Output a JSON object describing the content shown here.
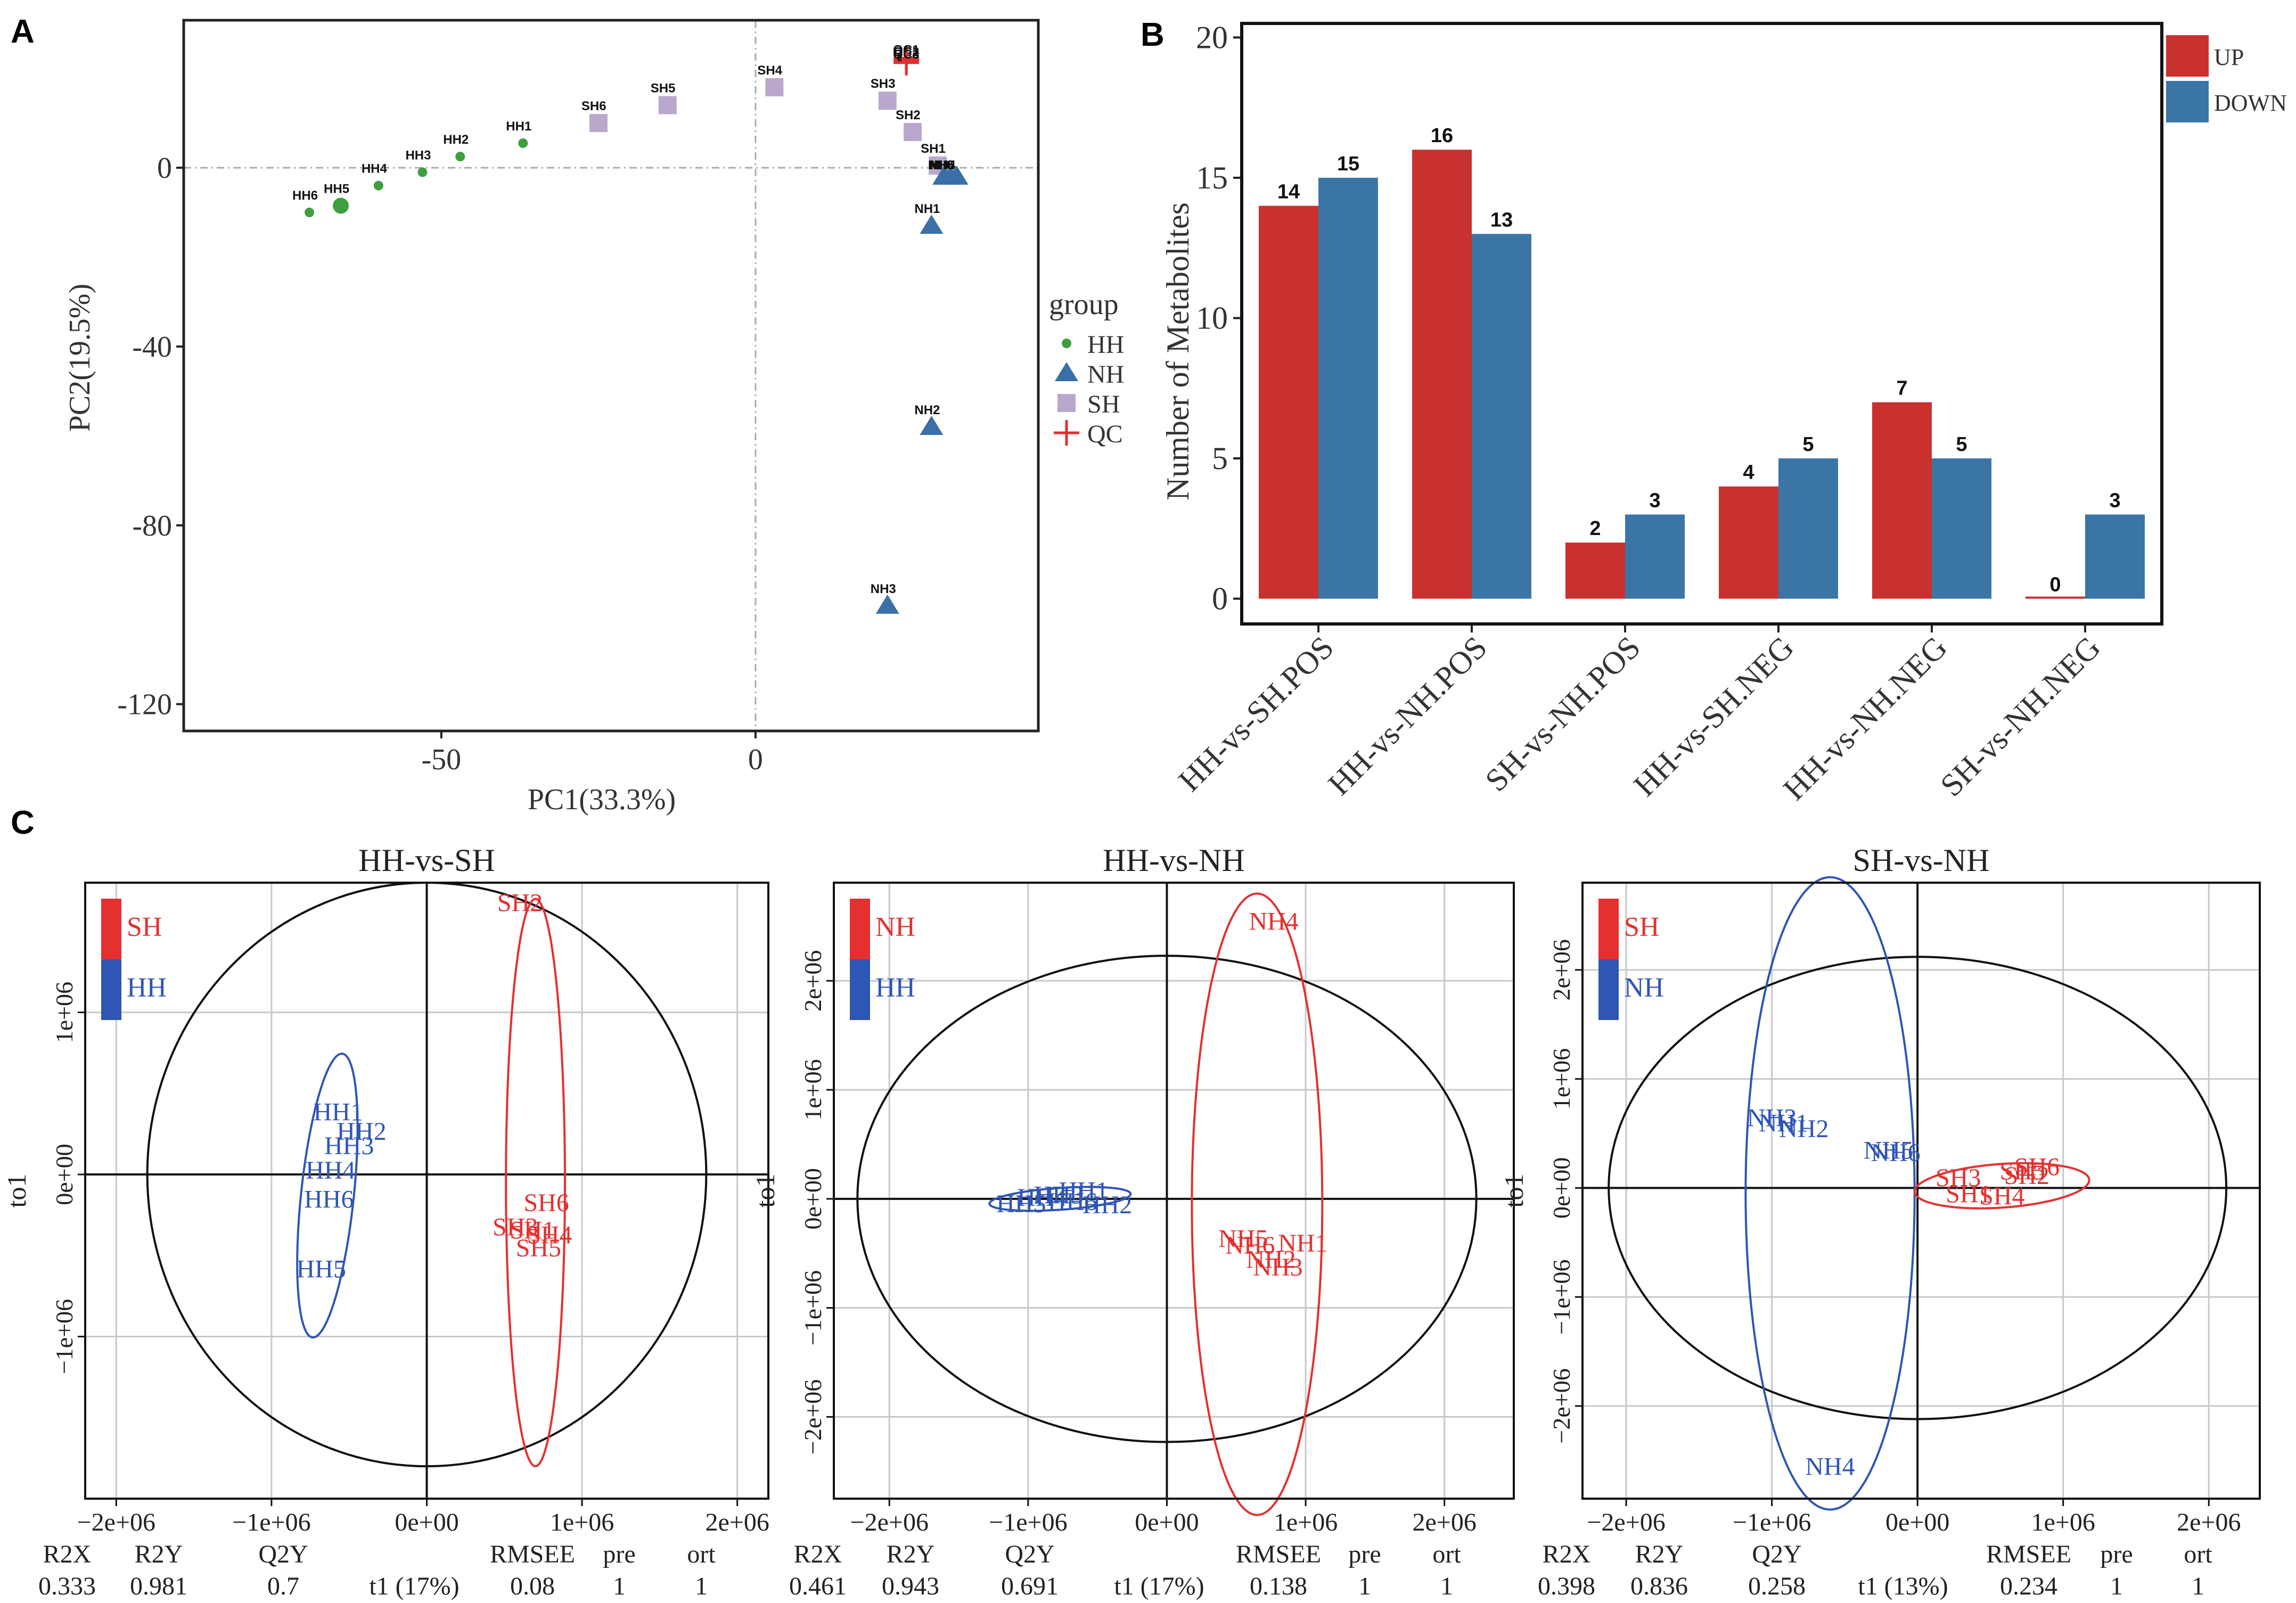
{
  "panel_letters": {
    "a": "A",
    "b": "B",
    "c": "C"
  },
  "chart_data": [
    {
      "type": "scatter",
      "panel": "A",
      "title": "",
      "xlabel": "PC1(33.3%)",
      "ylabel": "PC2(19.5%)",
      "xlim": [
        -91,
        45
      ],
      "ylim": [
        -126,
        33
      ],
      "xticks": [
        -50,
        0
      ],
      "yticks": [
        0,
        -40,
        -80,
        -120
      ],
      "legend": {
        "title": "group",
        "position": "right",
        "items": [
          {
            "label": "HH",
            "shape": "circle",
            "color": "#3f9e3f"
          },
          {
            "label": "NH",
            "shape": "triangle",
            "color": "#3a6fa8"
          },
          {
            "label": "SH",
            "shape": "square",
            "color": "#b9a8cc"
          },
          {
            "label": "QC",
            "shape": "cross",
            "color": "#e03030"
          }
        ]
      },
      "points": [
        {
          "label": "HH6",
          "group": "HH",
          "x": -71,
          "y": -10,
          "big": false
        },
        {
          "label": "HH5",
          "group": "HH",
          "x": -66,
          "y": -8.5,
          "big": true
        },
        {
          "label": "HH4",
          "group": "HH",
          "x": -60,
          "y": -4,
          "big": false
        },
        {
          "label": "HH3",
          "group": "HH",
          "x": -53,
          "y": -1,
          "big": false
        },
        {
          "label": "HH2",
          "group": "HH",
          "x": -47,
          "y": 2.5,
          "big": false
        },
        {
          "label": "HH1",
          "group": "HH",
          "x": -37,
          "y": 5.5,
          "big": false
        },
        {
          "label": "SH6",
          "group": "SH",
          "x": -25,
          "y": 10,
          "big": false
        },
        {
          "label": "SH5",
          "group": "SH",
          "x": -14,
          "y": 14,
          "big": false
        },
        {
          "label": "SH4",
          "group": "SH",
          "x": 3,
          "y": 18,
          "big": false
        },
        {
          "label": "SH3",
          "group": "SH",
          "x": 21,
          "y": 15,
          "big": false
        },
        {
          "label": "SH2",
          "group": "SH",
          "x": 25,
          "y": 8,
          "big": false
        },
        {
          "label": "SH1",
          "group": "SH",
          "x": 29,
          "y": 0.5,
          "big": false
        },
        {
          "label": "NH1",
          "group": "NH",
          "x": 28,
          "y": -13,
          "big": false
        },
        {
          "label": "NH2",
          "group": "NH",
          "x": 28,
          "y": -58,
          "big": false
        },
        {
          "label": "NH3",
          "group": "NH",
          "x": 21,
          "y": -98,
          "big": false
        },
        {
          "label": "NH4",
          "group": "NH",
          "x": 32,
          "y": -2,
          "big": false
        },
        {
          "label": "NH5",
          "group": "NH",
          "x": 31,
          "y": -2,
          "big": false
        },
        {
          "label": "NH6",
          "group": "NH",
          "x": 30,
          "y": -2,
          "big": false
        },
        {
          "label": "QC1",
          "group": "QC",
          "x": 24,
          "y": 24.5,
          "big": false
        },
        {
          "label": "QC2",
          "group": "QC",
          "x": 24,
          "y": 24,
          "big": false
        },
        {
          "label": "QC3",
          "group": "QC",
          "x": 24,
          "y": 23.5,
          "big": false
        }
      ]
    },
    {
      "type": "bar",
      "panel": "B",
      "title": "",
      "xlabel": "",
      "ylabel": "Number of Metabolites",
      "ylim": [
        -0.9,
        20.5
      ],
      "yticks": [
        0,
        5,
        10,
        15,
        20
      ],
      "categories": [
        "HH-vs-SH.POS",
        "HH-vs-NH.POS",
        "SH-vs-NH.POS",
        "HH-vs-SH.NEG",
        "HH-vs-NH.NEG",
        "SH-vs-NH.NEG"
      ],
      "series": [
        {
          "name": "UP",
          "color": "#c8312f",
          "values": [
            14,
            16,
            2,
            4,
            7,
            0
          ]
        },
        {
          "name": "DOWN",
          "color": "#3a75a6",
          "values": [
            15,
            13,
            3,
            5,
            5,
            3
          ]
        }
      ],
      "legend": {
        "position": "top-right"
      }
    },
    {
      "type": "scatter",
      "panel": "C1",
      "title": "HH-vs-SH",
      "xlabel": "t1 (17%)",
      "ylabel": "to1",
      "xlim": [
        -2200000.0,
        2200000.0
      ],
      "ylim": [
        -2000000.0,
        1800000.0
      ],
      "xtick_labels": [
        {
          "v": -2000000.0,
          "t": "−2e+06"
        },
        {
          "v": -1000000.0,
          "t": "−1e+06"
        },
        {
          "v": 0,
          "t": "0e+00"
        },
        {
          "v": 1000000.0,
          "t": "1e+06"
        },
        {
          "v": 2000000.0,
          "t": "2e+06"
        }
      ],
      "ytick_labels": [
        {
          "v": 1000000.0,
          "t": "1e+06"
        },
        {
          "v": 0,
          "t": "0e+00"
        },
        {
          "v": -1000000.0,
          "t": "−1e+06"
        }
      ],
      "circle_radius": 1800000.0,
      "ellipses": [
        {
          "group": "HH",
          "color": "#2f55b5",
          "cx": -640000.0,
          "cy": -130000.0,
          "rx": 170000.0,
          "ry": 880000.0,
          "angle": 6
        },
        {
          "group": "SH",
          "color": "#e53030",
          "cx": 700000.0,
          "cy": -50000.0,
          "rx": 190000.0,
          "ry": 1750000.0,
          "angle": 0
        }
      ],
      "legend": [
        {
          "label": "SH",
          "color": "#e53030"
        },
        {
          "label": "HH",
          "color": "#2f55b5"
        }
      ],
      "points": [
        {
          "label": "SH2",
          "color": "#e53030",
          "x": 600000.0,
          "y": 1680000.0
        },
        {
          "label": "SH6",
          "color": "#e53030",
          "x": 770000.0,
          "y": -170000.0
        },
        {
          "label": "SH3",
          "color": "#e53030",
          "x": 570000.0,
          "y": -320000.0
        },
        {
          "label": "SH1",
          "color": "#e53030",
          "x": 680000.0,
          "y": -340000.0
        },
        {
          "label": "SH4",
          "color": "#e53030",
          "x": 790000.0,
          "y": -370000.0
        },
        {
          "label": "SH5",
          "color": "#e53030",
          "x": 720000.0,
          "y": -450000.0
        },
        {
          "label": "HH1",
          "color": "#2f55b5",
          "x": -570000.0,
          "y": 390000.0
        },
        {
          "label": "HH2",
          "color": "#2f55b5",
          "x": -420000.0,
          "y": 270000.0
        },
        {
          "label": "HH3",
          "color": "#2f55b5",
          "x": -500000.0,
          "y": 180000.0
        },
        {
          "label": "HH4",
          "color": "#2f55b5",
          "x": -620000.0,
          "y": 30000.0
        },
        {
          "label": "HH6",
          "color": "#2f55b5",
          "x": -630000.0,
          "y": -150000.0
        },
        {
          "label": "HH5",
          "color": "#2f55b5",
          "x": -680000.0,
          "y": -580000.0
        }
      ],
      "stats": {
        "R2X": "0.333",
        "R2Y": "0.981",
        "Q2Y": "0.7",
        "RMSEE": "0.08",
        "pre": "1",
        "ort": "1"
      }
    },
    {
      "type": "scatter",
      "panel": "C2",
      "title": "HH-vs-NH",
      "xlabel": "t1 (17%)",
      "ylabel": "to1",
      "xlim": [
        -2400000.0,
        2500000.0
      ],
      "ylim": [
        -2750000.0,
        2900000.0
      ],
      "xtick_labels": [
        {
          "v": -2000000.0,
          "t": "−2e+06"
        },
        {
          "v": -1000000.0,
          "t": "−1e+06"
        },
        {
          "v": 0,
          "t": "0e+00"
        },
        {
          "v": 1000000.0,
          "t": "1e+06"
        },
        {
          "v": 2000000.0,
          "t": "2e+06"
        }
      ],
      "ytick_labels": [
        {
          "v": 2000000.0,
          "t": "2e+06"
        },
        {
          "v": 1000000.0,
          "t": "1e+06"
        },
        {
          "v": 0,
          "t": "0e+00"
        },
        {
          "v": -1000000.0,
          "t": "−1e+06"
        },
        {
          "v": -2000000.0,
          "t": "−2e+06"
        }
      ],
      "circle_radius": 2230000.0,
      "ellipses": [
        {
          "group": "HH",
          "color": "#2f55b5",
          "cx": -770000.0,
          "cy": 0.0,
          "rx": 510000.0,
          "ry": 100000.0,
          "angle": -4
        },
        {
          "group": "NH",
          "color": "#e53030",
          "cx": 650000.0,
          "cy": -50000.0,
          "rx": 470000.0,
          "ry": 2850000.0,
          "angle": 0
        }
      ],
      "legend": [
        {
          "label": "NH",
          "color": "#e53030"
        },
        {
          "label": "HH",
          "color": "#2f55b5"
        }
      ],
      "points": [
        {
          "label": "NH4",
          "color": "#e53030",
          "x": 770000.0,
          "y": 2550000.0
        },
        {
          "label": "NH5",
          "color": "#e53030",
          "x": 550000.0,
          "y": -360000.0
        },
        {
          "label": "NH6",
          "color": "#e53030",
          "x": 600000.0,
          "y": -420000.0
        },
        {
          "label": "NH1",
          "color": "#e53030",
          "x": 980000.0,
          "y": -400000.0
        },
        {
          "label": "NH2",
          "color": "#e53030",
          "x": 750000.0,
          "y": -550000.0
        },
        {
          "label": "NH3",
          "color": "#e53030",
          "x": 800000.0,
          "y": -620000.0
        },
        {
          "label": "HH1",
          "color": "#2f55b5",
          "x": -600000.0,
          "y": 80000.0
        },
        {
          "label": "HH2",
          "color": "#2f55b5",
          "x": -430000.0,
          "y": -50000.0
        },
        {
          "label": "HH3",
          "color": "#2f55b5",
          "x": -780000.0,
          "y": 40000.0
        },
        {
          "label": "HH4",
          "color": "#2f55b5",
          "x": -900000.0,
          "y": 20000.0
        },
        {
          "label": "HH5",
          "color": "#2f55b5",
          "x": -1050000.0,
          "y": -40000.0
        },
        {
          "label": "HH6",
          "color": "#2f55b5",
          "x": -680000.0,
          "y": -20000.0
        }
      ],
      "stats": {
        "R2X": "0.461",
        "R2Y": "0.943",
        "Q2Y": "0.691",
        "RMSEE": "0.138",
        "pre": "1",
        "ort": "1"
      }
    },
    {
      "type": "scatter",
      "panel": "C3",
      "title": "SH-vs-NH",
      "xlabel": "t1 (13%)",
      "ylabel": "to1",
      "xlim": [
        -2300000.0,
        2350000.0
      ],
      "ylim": [
        -2850000.0,
        2800000.0
      ],
      "xtick_labels": [
        {
          "v": -2000000.0,
          "t": "−2e+06"
        },
        {
          "v": -1000000.0,
          "t": "−1e+06"
        },
        {
          "v": 0,
          "t": "0e+00"
        },
        {
          "v": 1000000.0,
          "t": "1e+06"
        },
        {
          "v": 2000000.0,
          "t": "2e+06"
        }
      ],
      "ytick_labels": [
        {
          "v": 2000000.0,
          "t": "2e+06"
        },
        {
          "v": 1000000.0,
          "t": "1e+06"
        },
        {
          "v": 0,
          "t": "0e+00"
        },
        {
          "v": -1000000.0,
          "t": "−1e+06"
        },
        {
          "v": -2000000.0,
          "t": "−2e+06"
        }
      ],
      "circle_radius": 2120000.0,
      "ellipses": [
        {
          "group": "NH",
          "color": "#2f55b5",
          "cx": -600000.0,
          "cy": -50000.0,
          "rx": 580000.0,
          "ry": 2900000.0,
          "angle": 0
        },
        {
          "group": "SH",
          "color": "#e53030",
          "cx": 580000.0,
          "cy": 20000.0,
          "rx": 600000.0,
          "ry": 200000.0,
          "angle": -4
        }
      ],
      "legend": [
        {
          "label": "SH",
          "color": "#e53030"
        },
        {
          "label": "NH",
          "color": "#2f55b5"
        }
      ],
      "points": [
        {
          "label": "NH3",
          "color": "#2f55b5",
          "x": -1000000.0,
          "y": 650000.0
        },
        {
          "label": "NH1",
          "color": "#2f55b5",
          "x": -920000.0,
          "y": 600000.0
        },
        {
          "label": "NH2",
          "color": "#2f55b5",
          "x": -780000.0,
          "y": 550000.0
        },
        {
          "label": "NH5",
          "color": "#2f55b5",
          "x": -200000.0,
          "y": 350000.0
        },
        {
          "label": "NH6",
          "color": "#2f55b5",
          "x": -150000.0,
          "y": 330000.0
        },
        {
          "label": "NH4",
          "color": "#2f55b5",
          "x": -600000.0,
          "y": -2550000.0
        },
        {
          "label": "SH6",
          "color": "#e53030",
          "x": 820000.0,
          "y": 200000.0
        },
        {
          "label": "SH2",
          "color": "#e53030",
          "x": 750000.0,
          "y": 120000.0
        },
        {
          "label": "SH5",
          "color": "#e53030",
          "x": 720000.0,
          "y": 160000.0
        },
        {
          "label": "SH3",
          "color": "#e53030",
          "x": 280000.0,
          "y": 100000.0
        },
        {
          "label": "SH1",
          "color": "#e53030",
          "x": 350000.0,
          "y": -50000.0
        },
        {
          "label": "SH4",
          "color": "#e53030",
          "x": 580000.0,
          "y": -70000.0
        }
      ],
      "stats": {
        "R2X": "0.398",
        "R2Y": "0.836",
        "Q2Y": "0.258",
        "RMSEE": "0.234",
        "pre": "1",
        "ort": "1"
      }
    }
  ]
}
